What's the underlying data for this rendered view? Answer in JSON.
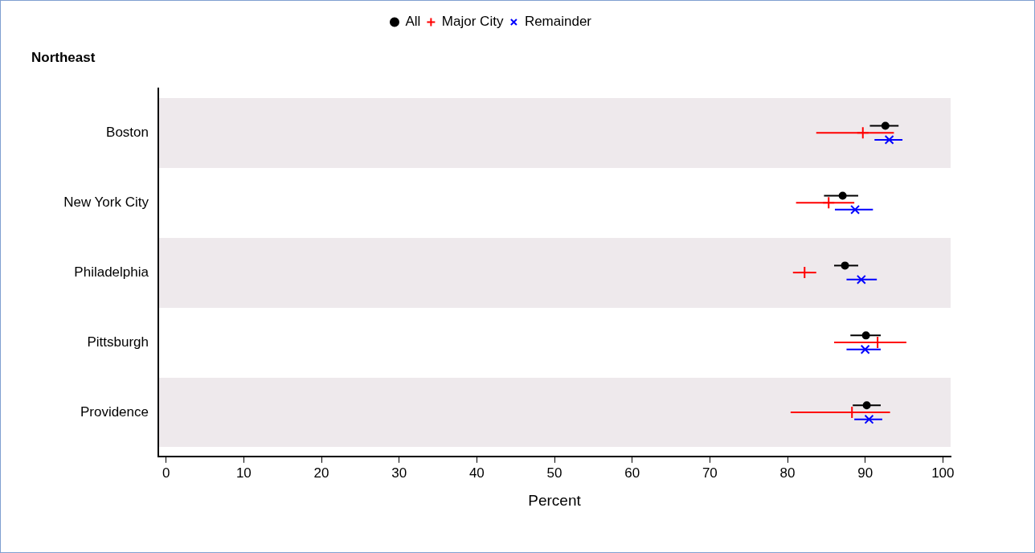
{
  "chart_data": {
    "type": "scatter",
    "orientation": "horizontal",
    "title": "Northeast",
    "xlabel": "Percent",
    "categories": [
      "Boston",
      "New York City",
      "Philadelphia",
      "Pittsburgh",
      "Providence"
    ],
    "series": [
      {
        "name": "All",
        "color": "#000000",
        "marker": "circle",
        "values": [
          92.6,
          87.1,
          87.4,
          90.1,
          90.2
        ],
        "errors": [
          [
            90.6,
            94.3
          ],
          [
            84.7,
            89.1
          ],
          [
            86.0,
            89.1
          ],
          [
            88.1,
            92.0
          ],
          [
            88.4,
            92.0
          ]
        ]
      },
      {
        "name": "Major City",
        "color": "#ff0000",
        "marker": "cross",
        "values": [
          89.7,
          85.3,
          82.2,
          91.6,
          88.3
        ],
        "errors": [
          [
            83.7,
            93.7
          ],
          [
            81.1,
            88.6
          ],
          [
            80.7,
            83.7
          ],
          [
            86.0,
            95.3
          ],
          [
            80.4,
            93.2
          ]
        ]
      },
      {
        "name": "Remainder",
        "color": "#0000ff",
        "marker": "x",
        "values": [
          93.1,
          88.7,
          89.5,
          90.0,
          90.5
        ],
        "errors": [
          [
            91.2,
            94.8
          ],
          [
            86.1,
            91.0
          ],
          [
            87.6,
            91.5
          ],
          [
            87.6,
            92.0
          ],
          [
            88.6,
            92.2
          ]
        ]
      }
    ],
    "xlim": [
      -1,
      101
    ],
    "xticks": [
      0,
      10,
      20,
      30,
      40,
      50,
      60,
      70,
      80,
      90,
      100
    ],
    "legend": "top",
    "grid": false
  }
}
